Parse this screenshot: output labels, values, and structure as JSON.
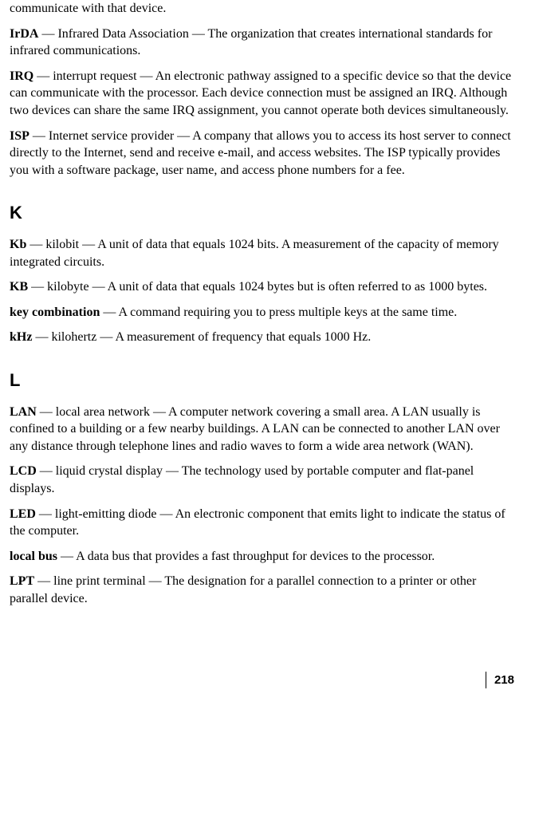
{
  "top_fragment": "communicate with that device.",
  "entries_i": [
    {
      "term": "IrDA",
      "def": " — Infrared Data Association — The organization that creates international standards for infrared communications."
    },
    {
      "term": "IRQ",
      "def": " — interrupt request — An electronic pathway assigned to a specific device so that the device can communicate with the processor. Each device connection must be assigned an IRQ. Although two devices can share the same IRQ assignment, you cannot operate both devices simultaneously."
    },
    {
      "term": "ISP",
      "def": " — Internet service provider — A company that allows you to access its host server to connect directly to the Internet, send and receive e-mail, and access websites. The ISP typically provides you with a software package, user name, and access phone numbers for a fee."
    }
  ],
  "section_k": "K",
  "entries_k": [
    {
      "term": "Kb",
      "def": " — kilobit — A unit of data that equals 1024 bits. A measurement of the capacity of memory integrated circuits."
    },
    {
      "term": "KB",
      "def": " — kilobyte — A unit of data that equals 1024 bytes but is often referred to as 1000 bytes."
    },
    {
      "term": "key combination",
      "def": " — A command requiring you to press multiple keys at the same time."
    },
    {
      "term": "kHz",
      "def": " — kilohertz — A measurement of frequency that equals 1000 Hz."
    }
  ],
  "section_l": "L",
  "entries_l": [
    {
      "term": "LAN",
      "def": " — local area network — A computer network covering a small area. A LAN usually is confined to a building or a few nearby buildings. A LAN can be connected to another LAN over any distance through telephone lines and radio waves to form a wide area network (WAN)."
    },
    {
      "term": "LCD",
      "def": " — liquid crystal display — The technology used by portable computer and flat-panel displays."
    },
    {
      "term": "LED",
      "def": " — light-emitting diode — An electronic component that emits light to indicate the status of the computer."
    },
    {
      "term": "local bus",
      "def": " — A data bus that provides a fast throughput for devices to the processor."
    },
    {
      "term": "LPT",
      "def": " — line print terminal — The designation for a parallel connection to a printer or other parallel device."
    }
  ],
  "page_number": "218"
}
